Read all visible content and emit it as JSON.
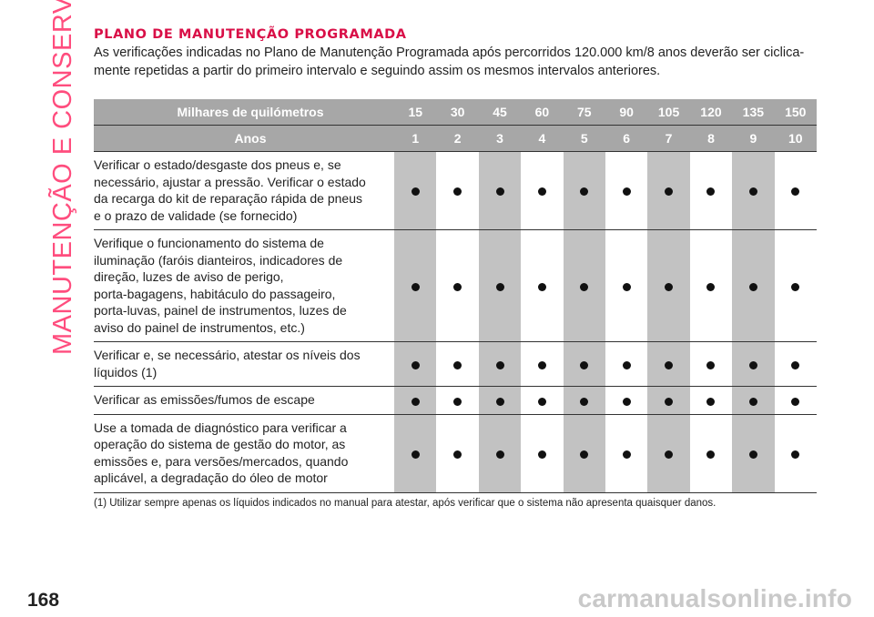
{
  "sidebar": {
    "section": "MANUTENÇÃO E CONSERVAÇÃO"
  },
  "page_number": "168",
  "watermark": "carmanualsonline.info",
  "section": {
    "title": "PLANO DE MANUTENÇÃO PROGRAMADA",
    "intro_line1": "As verificações indicadas no Plano de Manutenção Programada após percorridos 120.000 km/8 anos deverão ser ciclica-",
    "intro_line2": "mente repetidas a partir do primeiro intervalo e seguindo assim os mesmos intervalos anteriores."
  },
  "table": {
    "header_km_label": "Milhares de quilómetros",
    "header_years_label": "Anos",
    "km": [
      "15",
      "30",
      "45",
      "60",
      "75",
      "90",
      "105",
      "120",
      "135",
      "150"
    ],
    "years": [
      "1",
      "2",
      "3",
      "4",
      "5",
      "6",
      "7",
      "8",
      "9",
      "10"
    ],
    "rows": [
      {
        "lines": [
          "Verificar o estado/desgaste dos pneus e, se",
          "necessário, ajustar a pressão. Verificar o estado",
          "da recarga do kit de reparação rápida de pneus",
          "e o prazo de validade (se fornecido)"
        ],
        "marks": [
          1,
          1,
          1,
          1,
          1,
          1,
          1,
          1,
          1,
          1
        ]
      },
      {
        "lines": [
          "Verifique o funcionamento do sistema de",
          "iluminação (faróis dianteiros, indicadores de",
          "direção, luzes de aviso de perigo,",
          "porta-bagagens, habitáculo do passageiro,",
          "porta-luvas, painel de instrumentos, luzes de",
          "aviso do painel de instrumentos, etc.)"
        ],
        "marks": [
          1,
          1,
          1,
          1,
          1,
          1,
          1,
          1,
          1,
          1
        ]
      },
      {
        "lines": [
          "Verificar e, se necessário, atestar os níveis dos",
          "líquidos (1)"
        ],
        "marks": [
          1,
          1,
          1,
          1,
          1,
          1,
          1,
          1,
          1,
          1
        ]
      },
      {
        "lines": [
          "Verificar as emissões/fumos de escape"
        ],
        "marks": [
          1,
          1,
          1,
          1,
          1,
          1,
          1,
          1,
          1,
          1
        ]
      },
      {
        "lines": [
          "Use a tomada de diagnóstico para verificar a",
          "operação do sistema de gestão do motor, as",
          "emissões e, para versões/mercados, quando",
          "aplicável, a degradação do óleo de motor"
        ],
        "marks": [
          1,
          1,
          1,
          1,
          1,
          1,
          1,
          1,
          1,
          1
        ]
      }
    ],
    "mark_icon": "filled-circle-icon",
    "footnote": "(1) Utilizar sempre apenas os líquidos indicados no manual para atestar, após verificar que o sistema não apresenta quaisquer danos."
  },
  "colors": {
    "accent_title": "#d90f47",
    "sidebar_text": "#ff4d7e",
    "header_bg": "#a7a7a7",
    "shaded_column": "#c2c2c2"
  }
}
